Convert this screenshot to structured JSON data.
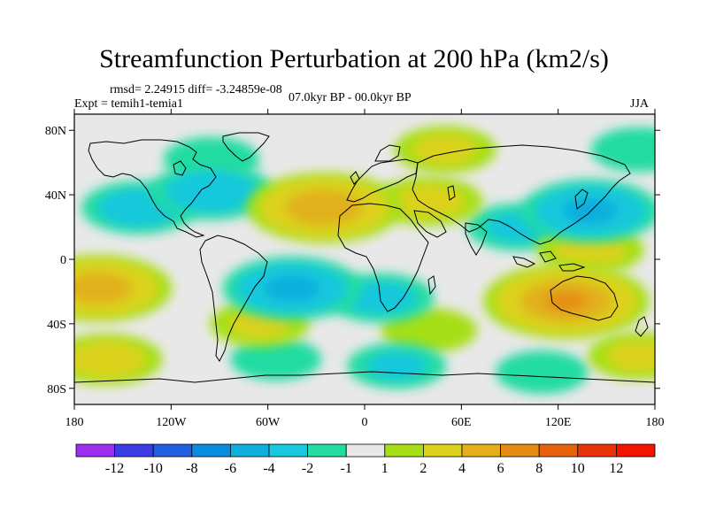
{
  "figure": {
    "title": "Streamfunction Perturbation at 200 hPa (km2/s)",
    "stats_line": "rmsd= 2.24915 diff= -3.24859e-08",
    "experiment": "Expt = temih1-temia1",
    "period": "07.0kyr BP - 00.0kyr BP",
    "season": "JJA"
  },
  "map": {
    "lat_labels": [
      "80N",
      "40N",
      "0",
      "40S",
      "80S"
    ],
    "lon_labels": [
      "180",
      "120W",
      "60W",
      "0",
      "60E",
      "120E",
      "180"
    ],
    "lat_values": [
      80,
      40,
      0,
      -40,
      -80
    ],
    "lon_values": [
      -180,
      -120,
      -60,
      0,
      60,
      120,
      180
    ],
    "lon_range": [
      -180,
      180
    ],
    "lat_range": [
      -90,
      90
    ],
    "background_color": "#e8e8e8"
  },
  "colorbar": {
    "labels": [
      "-12",
      "-10",
      "-8",
      "-6",
      "-4",
      "-2",
      "-1",
      "1",
      "2",
      "4",
      "6",
      "8",
      "10",
      "12"
    ],
    "colors": [
      "#9c2ff0",
      "#3c3ce6",
      "#1f5fe0",
      "#0a8de0",
      "#10aedc",
      "#18c8dc",
      "#22dca2",
      "#e8e8e8",
      "#a6df16",
      "#dcd21c",
      "#e1b01a",
      "#e68c14",
      "#e8620c",
      "#e8320a",
      "#f21400"
    ]
  },
  "anomalies": [
    {
      "lon": -95,
      "lat": 42,
      "value": -3.5
    },
    {
      "lon": -140,
      "lat": 32,
      "value": -3.0
    },
    {
      "lon": -25,
      "lat": 32,
      "value": 5.5
    },
    {
      "lon": 40,
      "lat": 36,
      "value": 2.5
    },
    {
      "lon": 140,
      "lat": 30,
      "value": -4.5
    },
    {
      "lon": 95,
      "lat": 20,
      "value": -2.2
    },
    {
      "lon": 50,
      "lat": 68,
      "value": 2.2
    },
    {
      "lon": 170,
      "lat": 68,
      "value": -1.8
    },
    {
      "lon": -95,
      "lat": 62,
      "value": -1.8
    },
    {
      "lon": 140,
      "lat": 6,
      "value": 2.5
    },
    {
      "lon": -45,
      "lat": -18,
      "value": -4.5
    },
    {
      "lon": 10,
      "lat": -24,
      "value": -2.5
    },
    {
      "lon": -165,
      "lat": -18,
      "value": 5.0
    },
    {
      "lon": 125,
      "lat": -26,
      "value": 6.2
    },
    {
      "lon": 40,
      "lat": -44,
      "value": 1.8
    },
    {
      "lon": -160,
      "lat": -62,
      "value": 2.8
    },
    {
      "lon": -65,
      "lat": -40,
      "value": 2.0
    },
    {
      "lon": -55,
      "lat": -62,
      "value": -1.5
    },
    {
      "lon": 20,
      "lat": -66,
      "value": -2.0
    },
    {
      "lon": 110,
      "lat": -70,
      "value": -1.6
    },
    {
      "lon": 170,
      "lat": -60,
      "value": 2.2
    }
  ]
}
